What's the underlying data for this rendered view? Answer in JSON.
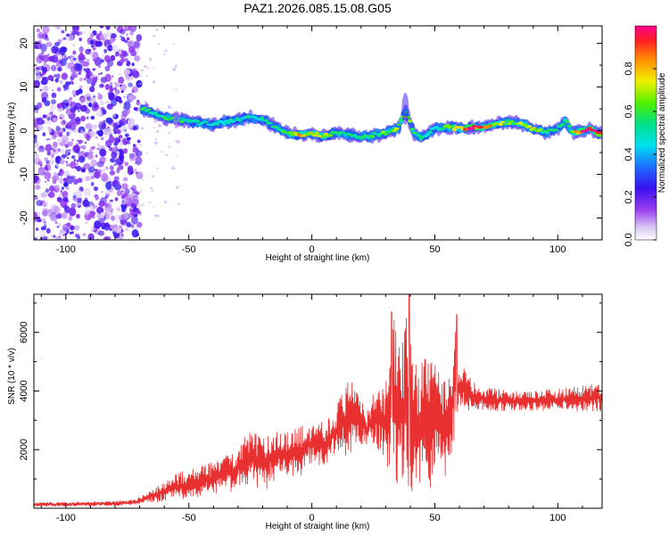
{
  "title": "PAZ1.2026.085.15.08.G05",
  "chart_data": [
    {
      "type": "heatmap",
      "name": "spectrogram",
      "xlabel": "Height of straight line (km)",
      "ylabel": "Frequency (Hz)",
      "xlim": [
        -113,
        118
      ],
      "ylim": [
        -25,
        24
      ],
      "xticks": [
        -100,
        -50,
        0,
        50,
        100
      ],
      "yticks": [
        -20,
        -10,
        0,
        10,
        20
      ],
      "noise_region": {
        "x_from": -113,
        "x_to": -70,
        "value": 0.15
      },
      "ridge": {
        "x": [
          -69,
          -65,
          -60,
          -55,
          -50,
          -45,
          -40,
          -35,
          -30,
          -25,
          -20,
          -15,
          -10,
          -5,
          0,
          5,
          10,
          15,
          20,
          25,
          30,
          35,
          38,
          42,
          45,
          50,
          55,
          60,
          65,
          70,
          75,
          80,
          85,
          90,
          95,
          100,
          103,
          106,
          110,
          113,
          118
        ],
        "y": [
          5,
          4.2,
          3,
          2.5,
          2.2,
          1.8,
          1.5,
          2,
          2.5,
          3,
          2.5,
          1,
          -0.5,
          -1,
          -0.8,
          -1.2,
          -0.5,
          -1,
          -1.5,
          -1,
          -0.5,
          0.5,
          4.5,
          -1,
          -1.5,
          0.5,
          0.8,
          0.5,
          0.8,
          0.7,
          1.5,
          2,
          1.5,
          0.5,
          -0.5,
          0.5,
          2.5,
          -0.5,
          0,
          0.5,
          -1
        ],
        "amplitude": [
          0.55,
          0.5,
          0.55,
          0.6,
          0.55,
          0.5,
          0.45,
          0.5,
          0.45,
          0.55,
          0.5,
          0.55,
          0.6,
          0.8,
          0.75,
          0.7,
          0.6,
          0.55,
          0.5,
          0.55,
          0.6,
          0.65,
          0.7,
          0.55,
          0.5,
          0.45,
          0.6,
          0.75,
          0.95,
          0.9,
          0.7,
          0.6,
          0.65,
          0.7,
          0.55,
          0.5,
          0.6,
          0.7,
          0.95,
          0.9,
          0.95
        ]
      },
      "colorbar": {
        "label": "Normalized spectral amplitude",
        "range": [
          0,
          1
        ],
        "ticks": [
          "0.0",
          "0.2",
          "0.4",
          "0.6",
          "0.8"
        ],
        "tick_values": [
          0,
          0.2,
          0.4,
          0.6,
          0.8
        ]
      }
    },
    {
      "type": "line",
      "name": "snr",
      "xlabel": "Height of straight line (km)",
      "ylabel": "SNR (10 * v/v)",
      "xlim": [
        -113,
        118
      ],
      "ylim": [
        0,
        7300
      ],
      "xticks": [
        -100,
        -50,
        0,
        50,
        100
      ],
      "yticks": [
        2000,
        4000,
        6000
      ],
      "color": "#e83030",
      "envelope": {
        "x": [
          -113,
          -100,
          -90,
          -80,
          -72,
          -68,
          -62,
          -55,
          -48,
          -40,
          -32,
          -25,
          -20,
          -15,
          -10,
          -5,
          0,
          5,
          10,
          15,
          18,
          22,
          25,
          30,
          33,
          36,
          38,
          40,
          42,
          45,
          48,
          50,
          53,
          56,
          58,
          60,
          62,
          65,
          70,
          80,
          90,
          100,
          110,
          118
        ],
        "low": [
          50,
          60,
          70,
          80,
          100,
          150,
          200,
          250,
          350,
          400,
          550,
          800,
          500,
          900,
          1100,
          1000,
          1500,
          1300,
          1800,
          1600,
          2200,
          2000,
          2200,
          1500,
          1000,
          700,
          600,
          500,
          400,
          800,
          500,
          1500,
          900,
          1300,
          2400,
          3400,
          3400,
          3300,
          3300,
          3300,
          3300,
          3300,
          3300,
          3300
        ],
        "high": [
          200,
          220,
          230,
          250,
          300,
          500,
          800,
          1200,
          1400,
          1600,
          2000,
          2700,
          2400,
          2800,
          2600,
          2800,
          3000,
          3000,
          3500,
          4600,
          4500,
          3300,
          3900,
          4200,
          6700,
          5500,
          6300,
          7300,
          4900,
          5500,
          5200,
          4900,
          4800,
          4500,
          6600,
          4600,
          4800,
          4400,
          4200,
          4000,
          4000,
          4100,
          4200,
          4300
        ]
      },
      "peaks": [
        {
          "x": 32.5,
          "y": 6700
        },
        {
          "x": 39.5,
          "y": 7300
        },
        {
          "x": 59,
          "y": 6600
        }
      ]
    }
  ]
}
